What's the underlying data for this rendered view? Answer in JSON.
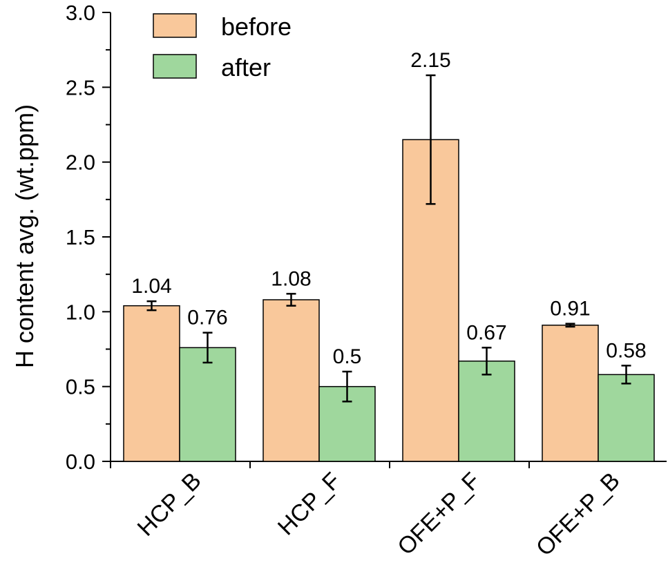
{
  "chart_data": {
    "type": "bar",
    "categories": [
      "HCP_B",
      "HCP_F",
      "OFE+P_F",
      "OFE+P_B"
    ],
    "series": [
      {
        "name": "before",
        "color": "#f9c89b",
        "values": [
          1.04,
          1.08,
          2.15,
          0.91
        ],
        "errors": [
          0.03,
          0.04,
          0.43,
          0.01
        ],
        "labels": [
          "1.04",
          "1.08",
          "2.15",
          "0.91"
        ]
      },
      {
        "name": "after",
        "color": "#9fd79d",
        "values": [
          0.76,
          0.5,
          0.67,
          0.58
        ],
        "errors": [
          0.1,
          0.1,
          0.09,
          0.06
        ],
        "labels": [
          "0.76",
          "0.5",
          "0.67",
          "0.58"
        ]
      }
    ],
    "ylabel": "H content avg. (wt.ppm)",
    "xlabel": "",
    "ylim": [
      0,
      3.0
    ],
    "yticks": [
      "0.0",
      "0.5",
      "1.0",
      "1.5",
      "2.0",
      "2.5",
      "3.0"
    ],
    "legend_position": "top-left",
    "grid": false
  }
}
